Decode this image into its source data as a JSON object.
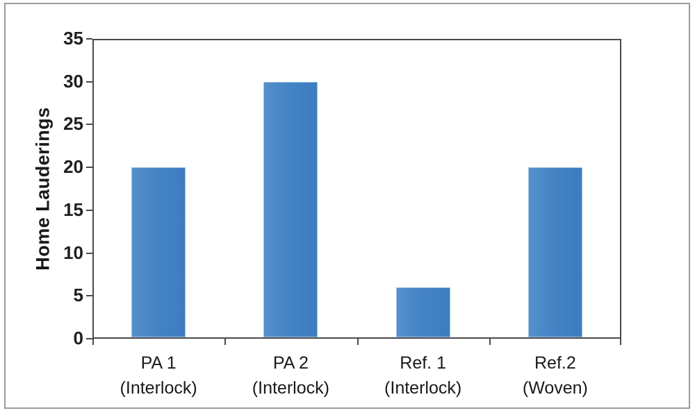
{
  "figure": {
    "frame_border_color": "#999999",
    "background": "#ffffff"
  },
  "chart_data": {
    "type": "bar",
    "title": "",
    "xlabel": "",
    "ylabel": "Home Lauderings",
    "categories": [
      "PA 1\n(Interlock)",
      "PA 2\n(Interlock)",
      "Ref. 1\n(Interlock)",
      "Ref.2\n(Woven)"
    ],
    "values": [
      20,
      30,
      6,
      20
    ],
    "ylim": [
      0,
      35
    ],
    "yticks": [
      0,
      5,
      10,
      15,
      20,
      25,
      30,
      35
    ],
    "grid": false,
    "legend": "none",
    "bar_color": "#4484c5",
    "bar_border_color": "#9dc3e6",
    "axis_color": "#4a4a4a",
    "text_color": "#1a1a1a"
  }
}
